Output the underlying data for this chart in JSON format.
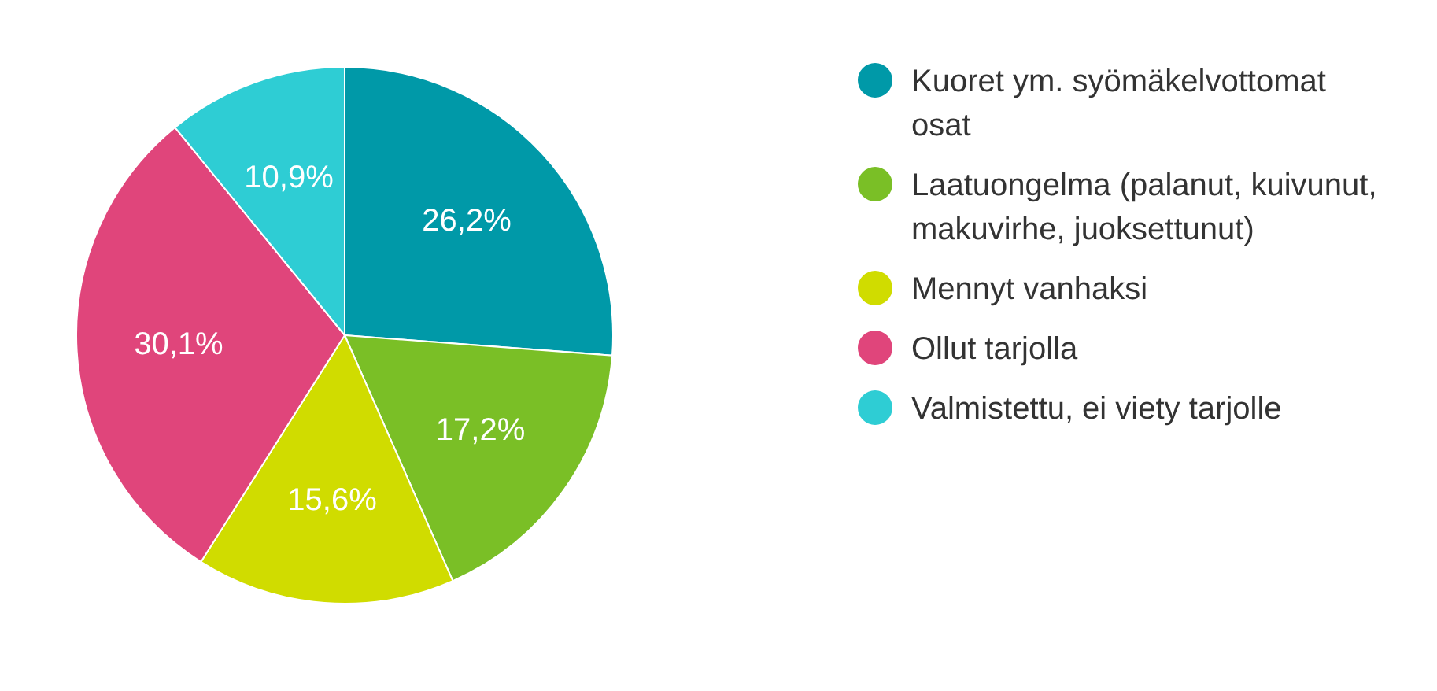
{
  "chart_data": {
    "type": "pie",
    "categories": [
      "Kuoret ym. syömäkelvottomat osat",
      "Laatuongelma (palanut, kuivunut, makuvirhe, juoksettunut)",
      "Mennyt vanhaksi",
      "Ollut tarjolla",
      "Valmistettu, ei viety tarjolle"
    ],
    "values": [
      26.2,
      17.2,
      15.6,
      30.1,
      10.9
    ],
    "colors": [
      "#0099a8",
      "#7abf26",
      "#d0dc00",
      "#e0457b",
      "#2ecdd4"
    ],
    "value_labels": [
      "26,2%",
      "17,2%",
      "15,6%",
      "30,1%",
      "10,9%"
    ],
    "legend": "right"
  }
}
